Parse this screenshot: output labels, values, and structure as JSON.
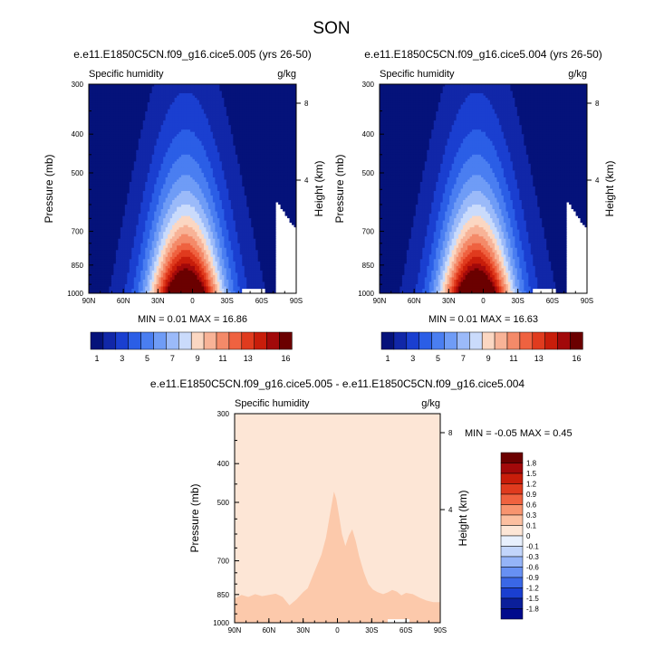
{
  "page_title": "SON",
  "colors": {
    "navy": "#05127a",
    "ocean": "#000a8c",
    "diff_bg": "#fde6d6",
    "diff_peak": "#fcc9ab",
    "warm": "#6b0000"
  },
  "chart_data": [
    {
      "type": "heatmap",
      "title": "e.e11.E1850C5CN.f09_g16.cice5.005 (yrs 26-50)",
      "left_string": "Specific humidity",
      "right_string": "g/kg",
      "ylabel": "Pressure (mb)",
      "y2label": "Height (km)",
      "y_ticks": [
        "300",
        "400",
        "500",
        "700",
        "850",
        "1000"
      ],
      "y2_ticks": [
        "8",
        "4"
      ],
      "x_ticks": [
        "90N",
        "60N",
        "30N",
        "0",
        "30S",
        "60S",
        "90S"
      ],
      "stats": "MIN =  0.01   MAX =  16.86",
      "min": 0.01,
      "max": 16.86,
      "levels": [
        1,
        2,
        3,
        4,
        5,
        6,
        7,
        8,
        9,
        10,
        11,
        12,
        13,
        14,
        15,
        16
      ],
      "colorbar_labels": [
        "1",
        "3",
        "5",
        "7",
        "9",
        "11",
        "13",
        "16"
      ]
    },
    {
      "type": "heatmap",
      "title": "e.e11.E1850C5CN.f09_g16.cice5.004 (yrs 26-50)",
      "left_string": "Specific humidity",
      "right_string": "g/kg",
      "ylabel": "Pressure (mb)",
      "y2label": "Height (km)",
      "y_ticks": [
        "300",
        "400",
        "500",
        "700",
        "850",
        "1000"
      ],
      "y2_ticks": [
        "8",
        "4"
      ],
      "x_ticks": [
        "90N",
        "60N",
        "30N",
        "0",
        "30S",
        "60S",
        "90S"
      ],
      "stats": "MIN =  0.01   MAX =  16.63",
      "min": 0.01,
      "max": 16.63,
      "levels": [
        1,
        2,
        3,
        4,
        5,
        6,
        7,
        8,
        9,
        10,
        11,
        12,
        13,
        14,
        15,
        16
      ],
      "colorbar_labels": [
        "1",
        "3",
        "5",
        "7",
        "9",
        "11",
        "13",
        "16"
      ]
    },
    {
      "type": "heatmap",
      "title": "e.e11.E1850C5CN.f09_g16.cice5.005 - e.e11.E1850C5CN.f09_g16.cice5.004",
      "left_string": "Specific humidity",
      "right_string": "g/kg",
      "ylabel": "Pressure (mb)",
      "y2label": "Height (km)",
      "y_ticks": [
        "300",
        "400",
        "500",
        "700",
        "850",
        "1000"
      ],
      "y2_ticks": [
        "8",
        "4"
      ],
      "x_ticks": [
        "90N",
        "60N",
        "30N",
        "0",
        "30S",
        "60S",
        "90S"
      ],
      "stats": "MIN =  -0.05   MAX =  0.45",
      "min": -0.05,
      "max": 0.45,
      "levels": [
        -1.8,
        -1.5,
        -1.2,
        -0.9,
        -0.6,
        -0.3,
        -0.1,
        0,
        0.1,
        0.3,
        0.6,
        0.9,
        1.2,
        1.5,
        1.8
      ],
      "colorbar_labels": [
        "1.8",
        "1.5",
        "1.2",
        "0.9",
        "0.6",
        "0.3",
        "0.1",
        "0",
        "-0.1",
        "-0.3",
        "-0.6",
        "-0.9",
        "-1.2",
        "-1.5",
        "-1.8"
      ]
    }
  ]
}
